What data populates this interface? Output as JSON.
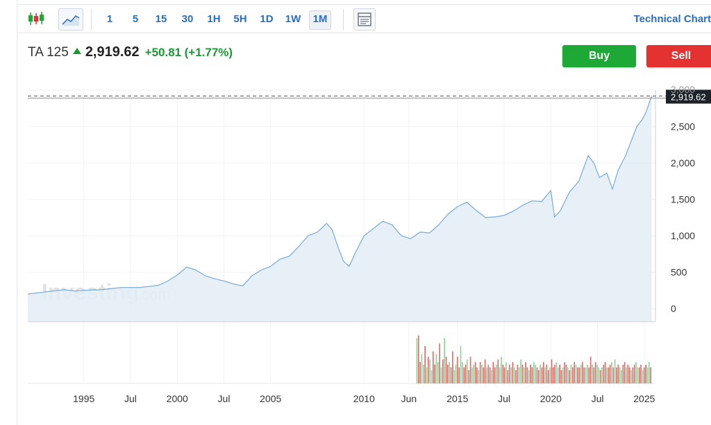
{
  "toolbar": {
    "candles_icon": "candlestick-icon",
    "line_icon": "line-chart-icon",
    "intervals": [
      "1",
      "5",
      "15",
      "30",
      "1H",
      "5H",
      "1D",
      "1W",
      "1M"
    ],
    "active_interval": "1M",
    "layout_icon": "chart-layout-icon",
    "technical_chart_label": "Technical Chart"
  },
  "quote": {
    "name": "TA 125",
    "price": "2,919.62",
    "change": "+50.81",
    "change_pct": "(+1.77%)",
    "direction": "up"
  },
  "actions": {
    "buy_label": "Buy",
    "sell_label": "Sell"
  },
  "watermark": {
    "brand": "Investing",
    "suffix": ".com"
  },
  "colors": {
    "up": "#1a9a34",
    "buy": "#1ea835",
    "sell": "#e3322f",
    "line": "#7fb0d8",
    "area": "#e4edf6",
    "volume_up": "#8fd19b",
    "volume_down": "#e06a6a",
    "link": "#2a6ec1"
  },
  "chart_data": {
    "type": "area",
    "ylim": [
      -180,
      3000
    ],
    "y_ticks": [
      0,
      500,
      1000,
      1500,
      2000,
      2500
    ],
    "y_tick_labels": [
      "0",
      "500",
      "1,000",
      "1,500",
      "2,000",
      "2,500"
    ],
    "y_top_partial_label": "3,000",
    "x_tick_labels": [
      "1995",
      "Jul",
      "2000",
      "Jul",
      "2005",
      "2010",
      "Jun",
      "2015",
      "Jul",
      "2020",
      "Jul",
      "2025"
    ],
    "x_tick_years": [
      1995.0,
      1997.5,
      2000.0,
      2002.5,
      2005.0,
      2010.0,
      2012.4,
      2015.0,
      2017.5,
      2020.0,
      2022.5,
      2025.0
    ],
    "xlim": [
      1992.0,
      2025.6
    ],
    "last_value": 2919.62,
    "last_value_label": "2,919.62",
    "grid": true,
    "series": [
      {
        "x": [
          1992.0,
          1993.0,
          1994.0,
          1994.5,
          1995.0,
          1996.0,
          1997.0,
          1998.0,
          1999.0,
          1999.5,
          2000.0,
          2000.5,
          2001.0,
          2001.5,
          2002.0,
          2002.5,
          2003.0,
          2003.5,
          2004.0,
          2004.5,
          2005.0,
          2005.5,
          2006.0,
          2006.5,
          2007.0,
          2007.5,
          2008.0,
          2008.3,
          2008.6,
          2008.9,
          2009.2,
          2009.6,
          2010.0,
          2010.5,
          2011.0,
          2011.5,
          2012.0,
          2012.5,
          2013.0,
          2013.5,
          2014.0,
          2014.5,
          2015.0,
          2015.5,
          2016.0,
          2016.5,
          2017.0,
          2017.5,
          2018.0,
          2018.5,
          2019.0,
          2019.5,
          2020.0,
          2020.2,
          2020.5,
          2021.0,
          2021.5,
          2022.0,
          2022.3,
          2022.6,
          2023.0,
          2023.3,
          2023.6,
          2024.0,
          2024.3,
          2024.6,
          2024.9,
          2025.1,
          2025.4
        ],
        "y": [
          200,
          230,
          260,
          240,
          250,
          260,
          290,
          290,
          320,
          380,
          460,
          570,
          530,
          450,
          410,
          380,
          340,
          310,
          450,
          530,
          580,
          680,
          720,
          850,
          1000,
          1050,
          1170,
          1080,
          850,
          650,
          580,
          800,
          1000,
          1100,
          1200,
          1150,
          1000,
          960,
          1050,
          1040,
          1150,
          1300,
          1400,
          1460,
          1350,
          1250,
          1260,
          1280,
          1340,
          1420,
          1480,
          1470,
          1620,
          1260,
          1340,
          1600,
          1750,
          2100,
          2000,
          1800,
          1860,
          1640,
          1900,
          2100,
          2300,
          2500,
          2600,
          2700,
          2919.62
        ]
      }
    ],
    "volume": {
      "x_start": 2012.8,
      "x_end": 2025.4,
      "bars": [
        0.85,
        0.9,
        0.4,
        0.55,
        0.35,
        0.7,
        0.3,
        0.5,
        0.45,
        0.25,
        0.6,
        0.35,
        0.55,
        0.4,
        0.75,
        0.3,
        0.45,
        0.85,
        0.5,
        0.35,
        0.4,
        0.3,
        0.6,
        0.25,
        0.35,
        0.5,
        0.3,
        0.7,
        0.4,
        0.3,
        0.35,
        0.45,
        0.25,
        0.5,
        0.3,
        0.35,
        0.4,
        0.3,
        0.25,
        0.4,
        0.35,
        0.3,
        0.45,
        0.3,
        0.35,
        0.3,
        0.25,
        0.4,
        0.3,
        0.35,
        0.45,
        0.3,
        0.5,
        0.35,
        0.3,
        0.4,
        0.25,
        0.35,
        0.3,
        0.4,
        0.3,
        0.25,
        0.35,
        0.3,
        0.45,
        0.35,
        0.3,
        0.4,
        0.3,
        0.25,
        0.35,
        0.3,
        0.4,
        0.35,
        0.3,
        0.25,
        0.35,
        0.3,
        0.4,
        0.3,
        0.35,
        0.25,
        0.3,
        0.45,
        0.3,
        0.35,
        0.4,
        0.3,
        0.35,
        0.25,
        0.3,
        0.4,
        0.35,
        0.3,
        0.25,
        0.35,
        0.3,
        0.4,
        0.35,
        0.3,
        0.3,
        0.35,
        0.4,
        0.3,
        0.3,
        0.35,
        0.3,
        0.5,
        0.35,
        0.3,
        0.4,
        0.35,
        0.3,
        0.25,
        0.3,
        0.35,
        0.4,
        0.3,
        0.3,
        0.35,
        0.4,
        0.3,
        0.45,
        0.3,
        0.35,
        0.3,
        0.25,
        0.35,
        0.4,
        0.3,
        0.35,
        0.3,
        0.25,
        0.3,
        0.35,
        0.4,
        0.3,
        0.3,
        0.35,
        0.25,
        0.3,
        0.35,
        0.3,
        0.4,
        0.3
      ],
      "directions": "udduududuudduudududdudduudduuddudduuddududduddudduduudduddududduududdudduudduddudduddduudduddududduddudduuddudduududduddududduudduddudduudd"
    }
  }
}
